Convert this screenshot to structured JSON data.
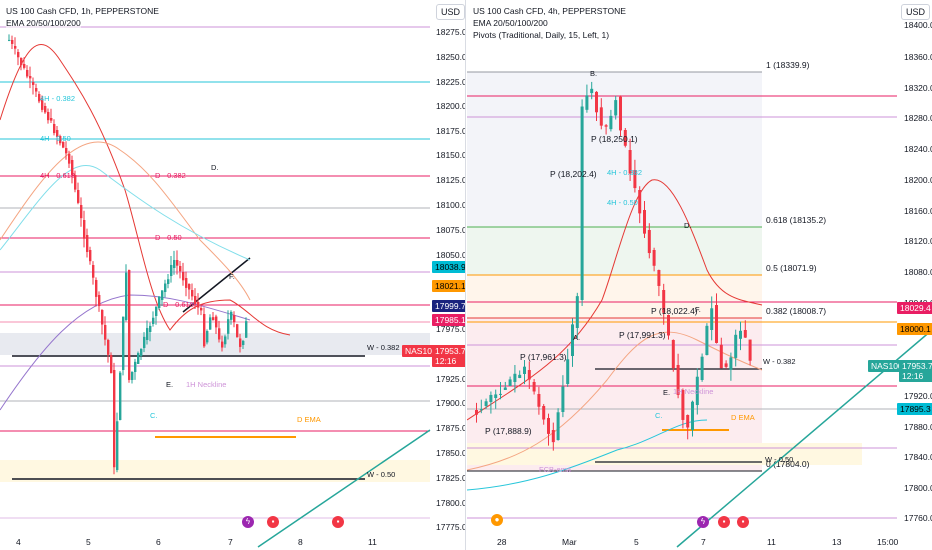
{
  "left": {
    "title": "US 100 Cash CFD, 1h, PEPPERSTONE",
    "indicator": "EMA 20/50/100/200",
    "currency": "USD",
    "price_ticks": [
      "18275.0",
      "18250.0",
      "18225.0",
      "18200.0",
      "18175.0",
      "18150.0",
      "18125.0",
      "18100.0",
      "18075.0",
      "18050.0",
      "17975.0",
      "17925.0",
      "17900.0",
      "17875.0",
      "17850.0",
      "17825.0",
      "17800.0",
      "17775.0"
    ],
    "price_tags": [
      {
        "text": "18038.9",
        "bg": "#00bcd4",
        "fg": "#000000"
      },
      {
        "text": "18021.1",
        "bg": "#ff9800",
        "fg": "#000000"
      },
      {
        "text": "17999.7",
        "bg": "#1a237e",
        "fg": "#ffffff"
      },
      {
        "text": "17985.1",
        "bg": "#e91e63",
        "fg": "#ffffff"
      }
    ],
    "symbol_tag": {
      "name": "NAS100",
      "price": "17953.7",
      "countdown": "12:16"
    },
    "time_labels": [
      "4",
      "5",
      "6",
      "7",
      "8",
      "11"
    ],
    "annotations": {
      "fib_4h": "4H - 0.382",
      "fib_4h_50": "4H - 0.50",
      "fib_4h_618": "4H - 0.618",
      "d382": "D - 0.382",
      "d50": "D - 0.50",
      "d618": "D - 0.618",
      "point_d": "D.",
      "point_f": "F.",
      "point_e": "E.",
      "point_c": "C.",
      "neckline": "1H Neckline",
      "w382": "W - 0.382",
      "w50": "W - 0.50",
      "dema": "D EMA"
    }
  },
  "right": {
    "title": "US 100 Cash CFD, 4h, PEPPERSTONE",
    "indicator": "EMA 20/50/100/200",
    "pivots": "Pivots (Traditional, Daily, 15, Left, 1)",
    "currency": "USD",
    "price_ticks": [
      "18400.0",
      "18360.0",
      "18320.0",
      "18280.0",
      "18240.0",
      "18200.0",
      "18160.0",
      "18120.0",
      "18080.0",
      "18040.0",
      "17920.0",
      "17880.0",
      "17840.0",
      "17800.0",
      "17760.0"
    ],
    "price_tags": [
      {
        "text": "18029.4",
        "bg": "#e91e63",
        "fg": "#ffffff"
      },
      {
        "text": "18000.1",
        "bg": "#ff9800",
        "fg": "#000000"
      },
      {
        "text": "17895.3",
        "bg": "#00bcd4",
        "fg": "#000000"
      }
    ],
    "symbol_tag": {
      "name": "NAS100",
      "price": "17953.7",
      "countdown": "12:16"
    },
    "time_labels": [
      "28",
      "Mar",
      "5",
      "7",
      "11",
      "13",
      "15:00"
    ],
    "fib_levels": [
      {
        "text": "1 (18339.9)",
        "color": "#9598a1"
      },
      {
        "text": "0.618 (18135.2)",
        "color": "#4caf50"
      },
      {
        "text": "0.5 (18071.9)",
        "color": "#ff9800"
      },
      {
        "text": "0.382 (18008.7)",
        "color": "#e53935"
      },
      {
        "text": "0 (17804.0)",
        "color": "#131722"
      }
    ],
    "pivots_labels": [
      "P (18,250.1)",
      "P (18,202.4)",
      "P (18,022.4)",
      "P (17,991.3)",
      "P (17,961.3)",
      "P (17,888.9)"
    ],
    "annotations": {
      "point_b": "B.",
      "point_a": "A.",
      "point_d": "D.",
      "point_f": "F.",
      "point_e": "E.",
      "point_c": "C.",
      "neckline": "1H Neckline",
      "w382": "W - 0.382",
      "w50": "W - 0.50",
      "dema": "D EMA",
      "fcb": "FCB-ema",
      "fib_4h": "4H - 0.382",
      "fib_4h_50": "4H - 0.50"
    }
  }
}
